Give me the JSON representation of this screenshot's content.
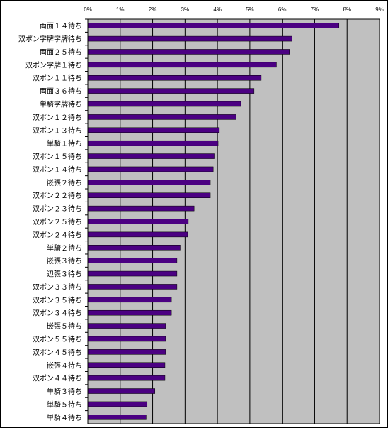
{
  "chart_data": {
    "type": "bar",
    "orientation": "horizontal",
    "xlim": [
      0,
      9
    ],
    "x_ticks": [
      "0%",
      "1%",
      "2%",
      "3%",
      "4%",
      "5%",
      "6%",
      "7%",
      "8%",
      "9%"
    ],
    "grid": true,
    "legend": "none",
    "colors": {
      "bar": "#4b0082",
      "plot_background": "#c0c0c0",
      "gridline": "#000000"
    },
    "categories": [
      "両面１４待ち",
      "双ポン字牌字牌待ち",
      "両面２５待ち",
      "双ポン字牌１待ち",
      "双ポン１１待ち",
      "両面３６待ち",
      "単騎字牌待ち",
      "双ポン１２待ち",
      "双ポン１３待ち",
      "単騎１待ち",
      "双ポン１５待ち",
      "双ポン１４待ち",
      "嵌張２待ち",
      "双ポン２２待ち",
      "双ポン２３待ち",
      "双ポン２５待ち",
      "双ポン２４待ち",
      "単騎２待ち",
      "嵌張３待ち",
      "辺張３待ち",
      "双ポン３３待ち",
      "双ポン３５待ち",
      "双ポン３４待ち",
      "嵌張５待ち",
      "双ポン５５待ち",
      "双ポン４５待ち",
      "嵌張４待ち",
      "双ポン４４待ち",
      "単騎３待ち",
      "単騎５待ち",
      "単騎４待ち"
    ],
    "values": [
      7.75,
      6.3,
      6.22,
      5.82,
      5.35,
      5.13,
      4.72,
      4.57,
      4.06,
      4.02,
      3.9,
      3.87,
      3.78,
      3.78,
      3.28,
      3.1,
      3.08,
      2.85,
      2.75,
      2.75,
      2.75,
      2.58,
      2.58,
      2.4,
      2.4,
      2.4,
      2.38,
      2.38,
      2.07,
      1.83,
      1.8
    ]
  }
}
